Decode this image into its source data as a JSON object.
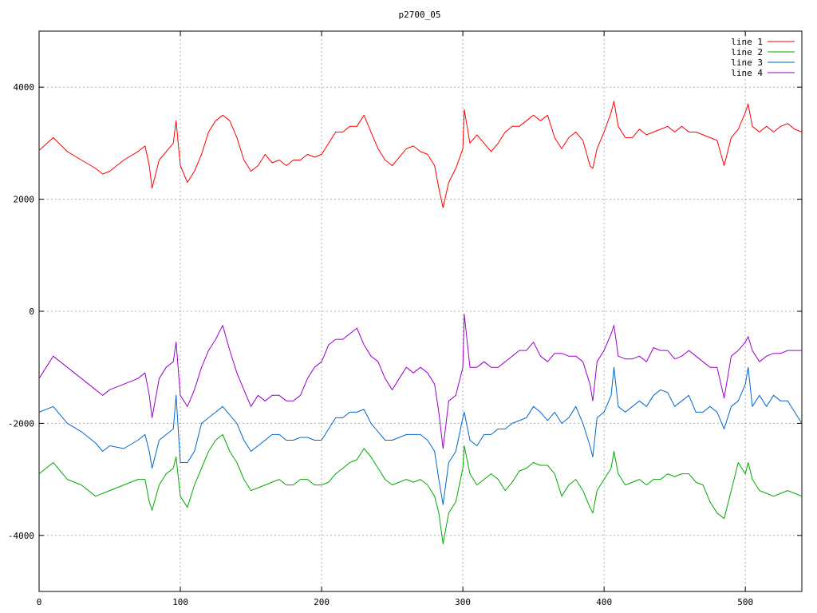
{
  "chart_data": {
    "type": "line",
    "title": "p2700_05",
    "xlabel": "",
    "ylabel": "",
    "xlim": [
      0,
      540
    ],
    "ylim": [
      -5000,
      5000
    ],
    "xticks": [
      0,
      100,
      200,
      300,
      400,
      500
    ],
    "yticks": [
      -4000,
      -2000,
      0,
      2000,
      4000
    ],
    "xtick_labels": [
      "0",
      "100",
      "200",
      "300",
      "400",
      "500"
    ],
    "ytick_labels": [
      "-4000",
      "-2000",
      "0",
      "2000",
      "4000"
    ],
    "grid": true,
    "legend_position": "top-right",
    "x": [
      0,
      10,
      20,
      30,
      40,
      45,
      50,
      60,
      70,
      75,
      78,
      80,
      85,
      90,
      95,
      97,
      100,
      105,
      110,
      115,
      120,
      125,
      130,
      135,
      140,
      145,
      150,
      155,
      160,
      165,
      170,
      175,
      180,
      185,
      190,
      195,
      200,
      205,
      210,
      215,
      220,
      225,
      230,
      235,
      240,
      245,
      250,
      255,
      260,
      265,
      270,
      275,
      280,
      283,
      286,
      290,
      295,
      300,
      301,
      305,
      310,
      315,
      320,
      325,
      330,
      335,
      340,
      345,
      350,
      355,
      360,
      365,
      370,
      375,
      380,
      385,
      390,
      392,
      395,
      400,
      405,
      407,
      410,
      415,
      420,
      425,
      430,
      435,
      440,
      445,
      450,
      455,
      460,
      465,
      470,
      475,
      480,
      485,
      490,
      495,
      500,
      502,
      505,
      510,
      515,
      520,
      525,
      530,
      535,
      540
    ],
    "series": [
      {
        "name": "line 1",
        "color": "#ff0000",
        "values": [
          2870,
          3100,
          2850,
          2700,
          2550,
          2450,
          2500,
          2700,
          2850,
          2950,
          2600,
          2200,
          2700,
          2850,
          3000,
          3400,
          2600,
          2300,
          2500,
          2800,
          3200,
          3400,
          3500,
          3400,
          3100,
          2700,
          2500,
          2600,
          2800,
          2650,
          2700,
          2600,
          2700,
          2700,
          2800,
          2750,
          2800,
          3000,
          3200,
          3200,
          3300,
          3300,
          3500,
          3200,
          2900,
          2700,
          2600,
          2750,
          2900,
          2950,
          2850,
          2800,
          2600,
          2200,
          1850,
          2300,
          2550,
          2900,
          3600,
          3000,
          3150,
          3000,
          2850,
          3000,
          3200,
          3300,
          3300,
          3400,
          3500,
          3400,
          3500,
          3100,
          2900,
          3100,
          3200,
          3050,
          2600,
          2550,
          2900,
          3200,
          3550,
          3750,
          3300,
          3100,
          3100,
          3250,
          3150,
          3200,
          3250,
          3300,
          3200,
          3300,
          3200,
          3200,
          3150,
          3100,
          3050,
          2600,
          3100,
          3250,
          3550,
          3700,
          3300,
          3200,
          3300,
          3200,
          3300,
          3350,
          3250,
          3200
        ]
      },
      {
        "name": "line 2",
        "color": "#00aa00",
        "values": [
          -2900,
          -2700,
          -3000,
          -3100,
          -3300,
          -3250,
          -3200,
          -3100,
          -3000,
          -3000,
          -3400,
          -3550,
          -3100,
          -2900,
          -2800,
          -2600,
          -3300,
          -3500,
          -3100,
          -2800,
          -2500,
          -2300,
          -2200,
          -2500,
          -2700,
          -3000,
          -3200,
          -3150,
          -3100,
          -3050,
          -3000,
          -3100,
          -3100,
          -3000,
          -3000,
          -3100,
          -3100,
          -3050,
          -2900,
          -2800,
          -2700,
          -2650,
          -2450,
          -2600,
          -2800,
          -3000,
          -3100,
          -3050,
          -3000,
          -3050,
          -3000,
          -3100,
          -3300,
          -3600,
          -4150,
          -3600,
          -3400,
          -2800,
          -2400,
          -2900,
          -3100,
          -3000,
          -2900,
          -3000,
          -3200,
          -3050,
          -2850,
          -2800,
          -2700,
          -2750,
          -2750,
          -2900,
          -3300,
          -3100,
          -3000,
          -3200,
          -3500,
          -3600,
          -3200,
          -3000,
          -2800,
          -2500,
          -2900,
          -3100,
          -3050,
          -3000,
          -3100,
          -3000,
          -3000,
          -2900,
          -2950,
          -2900,
          -2900,
          -3050,
          -3100,
          -3400,
          -3600,
          -3700,
          -3200,
          -2700,
          -2900,
          -2700,
          -3000,
          -3200,
          -3250,
          -3300,
          -3250,
          -3200,
          -3250,
          -3300
        ]
      },
      {
        "name": "line 3",
        "color": "#0066cc",
        "values": [
          -1800,
          -1700,
          -2000,
          -2150,
          -2350,
          -2500,
          -2400,
          -2450,
          -2300,
          -2200,
          -2500,
          -2800,
          -2300,
          -2200,
          -2100,
          -1500,
          -2700,
          -2700,
          -2500,
          -2000,
          -1900,
          -1800,
          -1700,
          -1850,
          -2000,
          -2300,
          -2500,
          -2400,
          -2300,
          -2200,
          -2200,
          -2300,
          -2300,
          -2250,
          -2250,
          -2300,
          -2300,
          -2100,
          -1900,
          -1900,
          -1800,
          -1800,
          -1750,
          -2000,
          -2150,
          -2300,
          -2300,
          -2250,
          -2200,
          -2200,
          -2200,
          -2300,
          -2500,
          -3000,
          -3450,
          -2700,
          -2500,
          -1900,
          -1800,
          -2300,
          -2400,
          -2200,
          -2200,
          -2100,
          -2100,
          -2000,
          -1950,
          -1900,
          -1700,
          -1800,
          -1950,
          -1800,
          -2000,
          -1900,
          -1700,
          -2000,
          -2400,
          -2600,
          -1900,
          -1800,
          -1500,
          -1000,
          -1700,
          -1800,
          -1700,
          -1600,
          -1700,
          -1500,
          -1400,
          -1450,
          -1700,
          -1600,
          -1500,
          -1800,
          -1800,
          -1700,
          -1800,
          -2100,
          -1700,
          -1600,
          -1300,
          -1000,
          -1700,
          -1500,
          -1700,
          -1500,
          -1600,
          -1600,
          -1800,
          -2000
        ]
      },
      {
        "name": "line 4",
        "color": "#9900cc",
        "values": [
          -1200,
          -800,
          -1000,
          -1200,
          -1400,
          -1500,
          -1400,
          -1300,
          -1200,
          -1100,
          -1500,
          -1900,
          -1200,
          -1000,
          -900,
          -550,
          -1500,
          -1700,
          -1400,
          -1000,
          -700,
          -500,
          -250,
          -700,
          -1100,
          -1400,
          -1700,
          -1500,
          -1600,
          -1500,
          -1500,
          -1600,
          -1600,
          -1500,
          -1200,
          -1000,
          -900,
          -600,
          -500,
          -500,
          -400,
          -300,
          -600,
          -800,
          -900,
          -1200,
          -1400,
          -1200,
          -1000,
          -1100,
          -1000,
          -1100,
          -1300,
          -1800,
          -2450,
          -1600,
          -1500,
          -1000,
          -50,
          -1000,
          -1000,
          -900,
          -1000,
          -1000,
          -900,
          -800,
          -700,
          -700,
          -550,
          -800,
          -900,
          -750,
          -750,
          -800,
          -800,
          -900,
          -1300,
          -1600,
          -900,
          -700,
          -400,
          -250,
          -800,
          -850,
          -850,
          -800,
          -900,
          -650,
          -700,
          -700,
          -850,
          -800,
          -700,
          -800,
          -900,
          -1000,
          -1000,
          -1550,
          -800,
          -700,
          -550,
          -450,
          -700,
          -900,
          -800,
          -750,
          -750,
          -700,
          -700,
          -700
        ]
      }
    ]
  }
}
